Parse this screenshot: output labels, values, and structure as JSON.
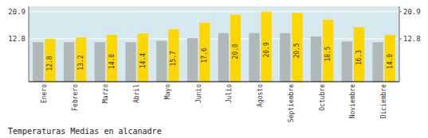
{
  "chart_data": {
    "type": "bar",
    "title": "Temperaturas Medias en alcanadre",
    "categories": [
      "Enero",
      "Febrero",
      "Marzo",
      "Abril",
      "Mayo",
      "Junio",
      "Julio",
      "Agosto",
      "Septiembre",
      "Octubre",
      "Noviembre",
      "Diciembre"
    ],
    "series": [
      {
        "color": "#B0B8B8",
        "values": [
          11.8,
          11.8,
          11.8,
          11.8,
          12.2,
          13.0,
          14.5,
          14.5,
          14.5,
          13.5,
          12.0,
          11.8
        ]
      },
      {
        "color": "#FFD700",
        "values": [
          12.8,
          13.2,
          14.0,
          14.4,
          15.7,
          17.6,
          20.0,
          20.9,
          20.5,
          18.5,
          16.3,
          14.0
        ],
        "value_labels": [
          "12.8",
          "13.2",
          "14.0",
          "14.4",
          "15.7",
          "17.6",
          "20.0",
          "20.9",
          "20.5",
          "18.5",
          "16.3",
          "14.0"
        ],
        "data_labels": true
      }
    ],
    "ylim": [
      0,
      22.5
    ],
    "yticks": [
      12.8,
      20.9
    ],
    "y2lim": [
      0,
      22.5
    ],
    "y2ticks": [
      12.8,
      20.9
    ],
    "grid": true
  }
}
